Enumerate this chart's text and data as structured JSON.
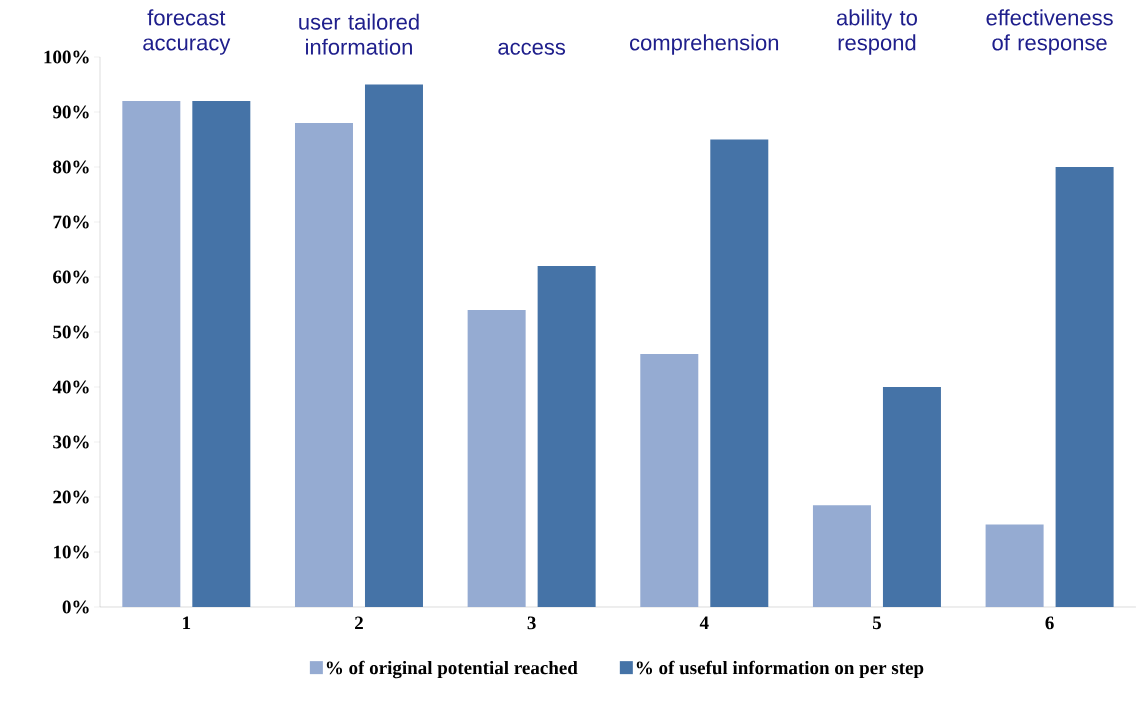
{
  "chart_data": {
    "type": "bar",
    "categories": [
      "1",
      "2",
      "3",
      "4",
      "5",
      "6"
    ],
    "series": [
      {
        "name": "% of original potential reached",
        "color": "#95abd2",
        "values": [
          92,
          88,
          54,
          46,
          18.5,
          15
        ]
      },
      {
        "name": "% of useful information on per step",
        "color": "#4573a7",
        "values": [
          92,
          95,
          62,
          85,
          40,
          80
        ]
      }
    ],
    "ylim": [
      0,
      100
    ],
    "yticks": [
      {
        "value": 0,
        "label": "0%"
      },
      {
        "value": 10,
        "label": "10%"
      },
      {
        "value": 20,
        "label": "20%"
      },
      {
        "value": 30,
        "label": "30%"
      },
      {
        "value": 40,
        "label": "40%"
      },
      {
        "value": 50,
        "label": "50%"
      },
      {
        "value": 60,
        "label": "60%"
      },
      {
        "value": 70,
        "label": "70%"
      },
      {
        "value": 80,
        "label": "80%"
      },
      {
        "value": 90,
        "label": "90%"
      },
      {
        "value": 100,
        "label": "100%"
      }
    ],
    "annotations": [
      "forecast accuracy",
      "user tailored information",
      "access",
      "comprehension",
      "ability to respond",
      "effectiveness of response"
    ],
    "legend": "bottom",
    "grid": false
  }
}
